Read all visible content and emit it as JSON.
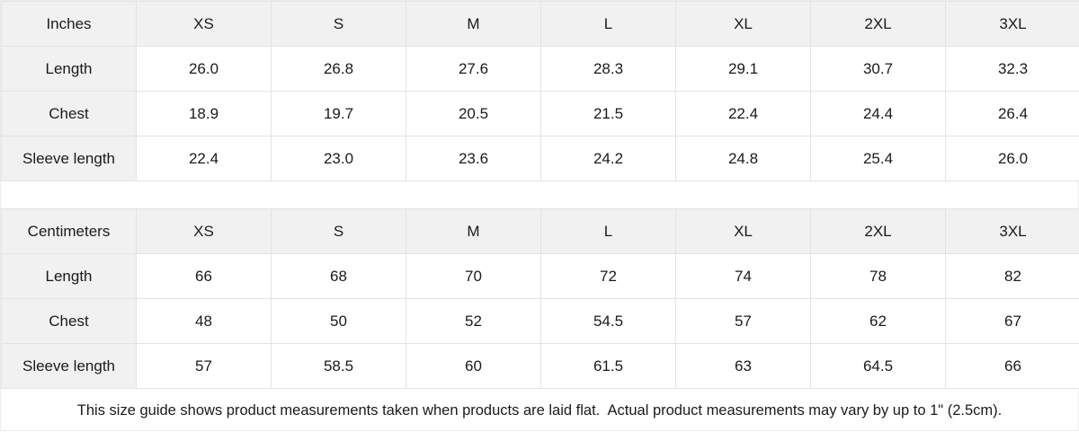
{
  "colors": {
    "header_bg": "#f1f1f1",
    "cell_bg": "#ffffff",
    "border": "#e3e3e3",
    "text": "#1a1a1a"
  },
  "tables": [
    {
      "unit_label": "Inches",
      "sizes": [
        "XS",
        "S",
        "M",
        "L",
        "XL",
        "2XL",
        "3XL"
      ],
      "rows": [
        {
          "label": "Length",
          "values": [
            "26.0",
            "26.8",
            "27.6",
            "28.3",
            "29.1",
            "30.7",
            "32.3"
          ]
        },
        {
          "label": "Chest",
          "values": [
            "18.9",
            "19.7",
            "20.5",
            "21.5",
            "22.4",
            "24.4",
            "26.4"
          ]
        },
        {
          "label": "Sleeve length",
          "values": [
            "22.4",
            "23.0",
            "23.6",
            "24.2",
            "24.8",
            "25.4",
            "26.0"
          ]
        }
      ]
    },
    {
      "unit_label": "Centimeters",
      "sizes": [
        "XS",
        "S",
        "M",
        "L",
        "XL",
        "2XL",
        "3XL"
      ],
      "rows": [
        {
          "label": "Length",
          "values": [
            "66",
            "68",
            "70",
            "72",
            "74",
            "78",
            "82"
          ]
        },
        {
          "label": "Chest",
          "values": [
            "48",
            "50",
            "52",
            "54.5",
            "57",
            "62",
            "67"
          ]
        },
        {
          "label": "Sleeve length",
          "values": [
            "57",
            "58.5",
            "60",
            "61.5",
            "63",
            "64.5",
            "66"
          ]
        }
      ]
    }
  ],
  "footer": {
    "note": "This size guide shows product measurements taken when products are laid flat.  Actual product measurements may vary by up to 1\" (2.5cm)."
  }
}
